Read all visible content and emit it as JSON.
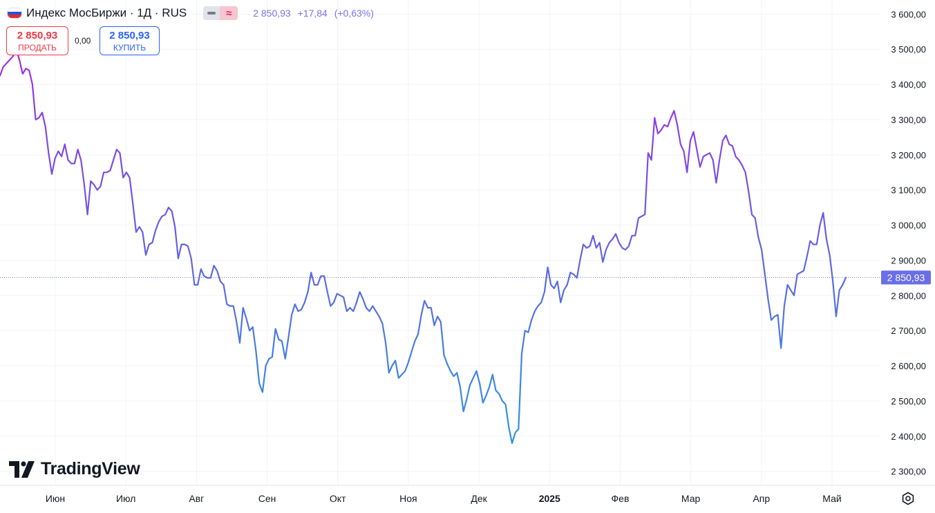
{
  "header": {
    "title": "Индекс МосБиржи · 1Д · RUS",
    "price": "2 850,93",
    "change": "+17,84",
    "change_pct": "(+0,63%)"
  },
  "trade": {
    "sell_price": "2 850,93",
    "sell_label": "ПРОДАТЬ",
    "spread": "0,00",
    "buy_price": "2 850,93",
    "buy_label": "КУПИТЬ"
  },
  "logo": {
    "text": "TradingView"
  },
  "colors": {
    "line_top": "#9c2fe6",
    "line_bottom": "#2a96e3",
    "price_label_bg": "#6a6ee8",
    "sell": "#f23645",
    "buy": "#2962ff",
    "quote": "#7b73e4",
    "grid": "#f0f3fa"
  },
  "chart_data": {
    "type": "line",
    "ylim": [
      2260,
      3640
    ],
    "y_ticks": [
      2300,
      2400,
      2500,
      2600,
      2700,
      2800,
      2900,
      3000,
      3100,
      3200,
      3300,
      3400,
      3500,
      3600
    ],
    "y_tick_labels": [
      "2 300,00",
      "2 400,00",
      "2 500,00",
      "2 600,00",
      "2 700,00",
      "2 800,00",
      "2 900,00",
      "3 000,00",
      "3 100,00",
      "3 200,00",
      "3 300,00",
      "3 400,00",
      "3 500,00",
      "3 600,00"
    ],
    "x_labels": [
      {
        "label": "Июн",
        "bold": false
      },
      {
        "label": "Июл",
        "bold": false
      },
      {
        "label": "Авг",
        "bold": false
      },
      {
        "label": "Сен",
        "bold": false
      },
      {
        "label": "Окт",
        "bold": false
      },
      {
        "label": "Ноя",
        "bold": false
      },
      {
        "label": "Дек",
        "bold": false
      },
      {
        "label": "2025",
        "bold": true
      },
      {
        "label": "Фев",
        "bold": false
      },
      {
        "label": "Мар",
        "bold": false
      },
      {
        "label": "Апр",
        "bold": false
      },
      {
        "label": "Май",
        "bold": false
      }
    ],
    "last_value": 2850.93,
    "last_value_label": "2 850,93",
    "grid": true,
    "series": [
      {
        "values": [
          3425,
          3450,
          3460,
          3470,
          3480,
          3500,
          3470,
          3430,
          3445,
          3440,
          3400,
          3300,
          3305,
          3320,
          3280,
          3205,
          3145,
          3190,
          3210,
          3195,
          3230,
          3185,
          3175,
          3175,
          3215,
          3185,
          3115,
          3030,
          3125,
          3115,
          3100,
          3110,
          3150,
          3150,
          3155,
          3185,
          3215,
          3205,
          3135,
          3150,
          3135,
          3060,
          2980,
          2995,
          2980,
          2915,
          2945,
          2950,
          2985,
          3010,
          3025,
          3030,
          3050,
          3040,
          2995,
          2905,
          2945,
          2945,
          2940,
          2905,
          2830,
          2830,
          2875,
          2855,
          2850,
          2850,
          2885,
          2870,
          2840,
          2830,
          2775,
          2770,
          2770,
          2725,
          2665,
          2765,
          2735,
          2700,
          2710,
          2640,
          2550,
          2525,
          2600,
          2620,
          2625,
          2705,
          2675,
          2670,
          2620,
          2680,
          2745,
          2775,
          2755,
          2760,
          2780,
          2810,
          2865,
          2830,
          2830,
          2855,
          2855,
          2810,
          2770,
          2780,
          2805,
          2800,
          2795,
          2755,
          2765,
          2755,
          2780,
          2810,
          2790,
          2765,
          2755,
          2770,
          2755,
          2740,
          2720,
          2665,
          2580,
          2600,
          2615,
          2565,
          2575,
          2585,
          2610,
          2640,
          2670,
          2690,
          2745,
          2785,
          2765,
          2765,
          2715,
          2740,
          2725,
          2630,
          2605,
          2585,
          2570,
          2580,
          2540,
          2470,
          2505,
          2545,
          2565,
          2585,
          2550,
          2495,
          2515,
          2540,
          2575,
          2530,
          2520,
          2500,
          2490,
          2425,
          2380,
          2410,
          2420,
          2635,
          2700,
          2695,
          2730,
          2755,
          2770,
          2780,
          2810,
          2880,
          2830,
          2820,
          2840,
          2780,
          2815,
          2830,
          2865,
          2860,
          2850,
          2900,
          2945,
          2935,
          2940,
          2970,
          2935,
          2950,
          2895,
          2930,
          2950,
          2960,
          2975,
          2950,
          2935,
          2930,
          2940,
          2970,
          2970,
          3020,
          3025,
          3030,
          3205,
          3185,
          3305,
          3260,
          3270,
          3285,
          3280,
          3305,
          3325,
          3285,
          3230,
          3210,
          3150,
          3240,
          3265,
          3215,
          3165,
          3195,
          3200,
          3205,
          3185,
          3120,
          3185,
          3240,
          3255,
          3230,
          3225,
          3195,
          3185,
          3170,
          3150,
          3095,
          3030,
          3020,
          2965,
          2930,
          2860,
          2790,
          2730,
          2740,
          2745,
          2650,
          2770,
          2830,
          2815,
          2800,
          2860,
          2865,
          2870,
          2910,
          2955,
          2945,
          2945,
          3000,
          3035,
          2960,
          2915,
          2840,
          2740,
          2815,
          2830,
          2850.93
        ]
      }
    ]
  }
}
